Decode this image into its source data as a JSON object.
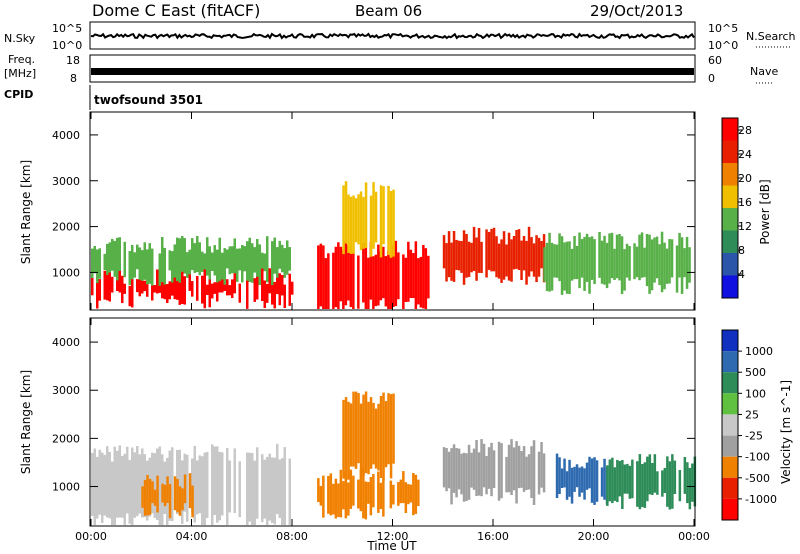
{
  "header": {
    "station": "Dome C East (fitACF)",
    "beam": "Beam 06",
    "date": "29/Oct/2013"
  },
  "noise_panel": {
    "left_label": "N.Sky",
    "right_label": "N.Search",
    "left_ticks": [
      "10^5",
      "10^0"
    ],
    "right_ticks": [
      "10^5",
      "10^0"
    ]
  },
  "freq_panel": {
    "left_label_line1": "Freq.",
    "left_label_line2": "[MHz]",
    "right_label": "Nave",
    "left_ticks": [
      "18",
      "8"
    ],
    "right_ticks": [
      "60",
      "0"
    ]
  },
  "cpid": {
    "label": "CPID",
    "value": "twofsound 3501"
  },
  "chart_data": [
    {
      "type": "heatmap",
      "title": "",
      "xlabel": "Time UT",
      "ylabel": "Slant Range [km]",
      "x_ticks": [
        "00:00",
        "04:00",
        "08:00",
        "12:00",
        "16:00",
        "20:00",
        "00:00"
      ],
      "xlim_hours": [
        0,
        24
      ],
      "y_ticks": [
        1000,
        2000,
        3000,
        4000
      ],
      "ylim": [
        180,
        4500
      ],
      "colorbar_label": "Power [dB]",
      "colorbar_ticks": [
        4,
        8,
        12,
        16,
        20,
        24,
        28
      ],
      "colorbar_range": [
        0,
        30
      ],
      "colorbar_colors": [
        "#1010e0",
        "#2a55a8",
        "#2e8c58",
        "#58b048",
        "#f0c000",
        "#f08000",
        "#e82000",
        "#ff0000"
      ],
      "bands": [
        {
          "t_start": 0.0,
          "t_end": 8.0,
          "r_low": 400,
          "r_high": 900,
          "level_db": 28
        },
        {
          "t_start": 0.0,
          "t_end": 8.0,
          "r_low": 900,
          "r_high": 1600,
          "level_db": 14
        },
        {
          "t_start": 9.0,
          "t_end": 13.5,
          "r_low": 250,
          "r_high": 1500,
          "level_db": 28
        },
        {
          "t_start": 10.0,
          "t_end": 12.0,
          "r_low": 1500,
          "r_high": 2800,
          "level_db": 16
        },
        {
          "t_start": 14.0,
          "t_end": 18.0,
          "r_low": 900,
          "r_high": 1800,
          "level_db": 24
        },
        {
          "t_start": 18.0,
          "t_end": 24.0,
          "r_low": 700,
          "r_high": 1700,
          "level_db": 14
        }
      ]
    },
    {
      "type": "heatmap",
      "title": "",
      "xlabel": "Time UT",
      "ylabel": "Slant Range [km]",
      "x_ticks": [
        "00:00",
        "04:00",
        "08:00",
        "12:00",
        "16:00",
        "20:00",
        "00:00"
      ],
      "xlim_hours": [
        0,
        24
      ],
      "y_ticks": [
        1000,
        2000,
        3000,
        4000
      ],
      "ylim": [
        180,
        4500
      ],
      "colorbar_label": "Velocity [m s^-1]",
      "colorbar_ticks": [
        1000,
        500,
        100,
        25,
        -25,
        -100,
        -500,
        -1000
      ],
      "colorbar_colors": [
        "#1030c0",
        "#2e6ab0",
        "#2e8c58",
        "#60c040",
        "#c8c8c8",
        "#a0a0a0",
        "#f08000",
        "#e82000",
        "#ff0000"
      ],
      "bands": [
        {
          "t_start": 0.0,
          "t_end": 8.0,
          "r_low": 300,
          "r_high": 1700,
          "velocity": 0
        },
        {
          "t_start": 2.0,
          "t_end": 4.0,
          "r_low": 500,
          "r_high": 1100,
          "velocity": -200
        },
        {
          "t_start": 9.0,
          "t_end": 13.0,
          "r_low": 500,
          "r_high": 1200,
          "velocity": -200
        },
        {
          "t_start": 10.0,
          "t_end": 12.0,
          "r_low": 1300,
          "r_high": 2800,
          "velocity": -200
        },
        {
          "t_start": 14.0,
          "t_end": 18.0,
          "r_low": 800,
          "r_high": 1800,
          "velocity": -100
        },
        {
          "t_start": 18.5,
          "t_end": 20.5,
          "r_low": 800,
          "r_high": 1500,
          "velocity": 700
        },
        {
          "t_start": 20.5,
          "t_end": 24.0,
          "r_low": 700,
          "r_high": 1500,
          "velocity": 150
        }
      ]
    }
  ]
}
